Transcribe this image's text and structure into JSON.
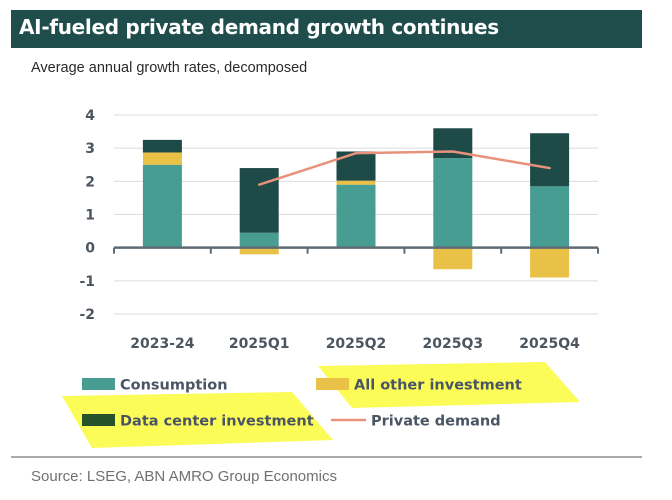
{
  "header": {
    "title": "AI-fueled private demand growth continues",
    "subtitle": "Average annual growth rates, decomposed"
  },
  "footer": {
    "source": "Source: LSEG, ABN AMRO Group Economics"
  },
  "colors": {
    "title_bar": "#1e4d4c",
    "consumption": "#479d92",
    "all_other_investment": "#e9c146",
    "data_center_investment": "#1e4a48",
    "data_center_investment_legend": "#26522a",
    "private_demand": "#e8927c",
    "highlighter": "#fbfb3c",
    "axis": "#5f6b74",
    "grid": "#dcdcdc"
  },
  "chart_data": {
    "type": "bar",
    "stacked": true,
    "title": "AI-fueled private demand growth continues",
    "subtitle": "Average annual growth rates, decomposed",
    "xlabel": "",
    "ylabel": "",
    "ylim": [
      -2,
      4
    ],
    "yticks": [
      4,
      3,
      2,
      1,
      0,
      -1,
      -2
    ],
    "grid": true,
    "categories": [
      "2023-24",
      "2025Q1",
      "2025Q2",
      "2025Q3",
      "2025Q4"
    ],
    "series": [
      {
        "name": "Consumption",
        "kind": "bar",
        "color_key": "consumption",
        "values": [
          2.5,
          0.45,
          1.9,
          2.7,
          1.85
        ]
      },
      {
        "name": "All other investment",
        "kind": "bar",
        "color_key": "all_other_investment",
        "values": [
          0.37,
          -0.2,
          0.12,
          -0.65,
          -0.9
        ]
      },
      {
        "name": "Data center investment",
        "kind": "bar",
        "color_key": "data_center_investment",
        "values": [
          0.38,
          1.95,
          0.88,
          0.9,
          1.6
        ]
      },
      {
        "name": "Private demand",
        "kind": "line",
        "color_key": "private_demand",
        "values": [
          null,
          1.9,
          2.85,
          2.9,
          2.4
        ]
      }
    ],
    "legend": {
      "placement": "bottom",
      "entries": [
        {
          "label": "Consumption",
          "type": "box",
          "color_key": "consumption",
          "highlighted": false
        },
        {
          "label": "All other investment",
          "type": "box",
          "color_key": "all_other_investment",
          "highlighted": true
        },
        {
          "label": "Data center investment",
          "type": "box",
          "color_key": "data_center_investment_legend",
          "highlighted": true
        },
        {
          "label": "Private demand",
          "type": "line",
          "color_key": "private_demand",
          "highlighted": false
        }
      ]
    }
  }
}
